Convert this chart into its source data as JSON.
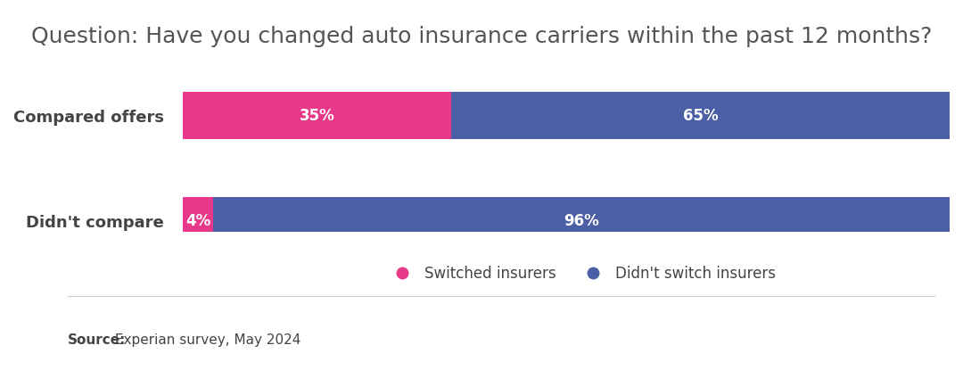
{
  "title": "Question: Have you changed auto insurance carriers within the past 12 months?",
  "categories": [
    "Compared offers",
    "Didn't compare"
  ],
  "switched": [
    35,
    4
  ],
  "not_switched": [
    65,
    96
  ],
  "switched_color": "#e8388a",
  "not_switched_color": "#4a5fa5",
  "bar_height": 0.45,
  "text_color_white": "#ffffff",
  "title_color": "#555555",
  "label_color": "#444444",
  "legend_switched": "Switched insurers",
  "legend_not_switched": "Didn't switch insurers",
  "source_bold": "Source:",
  "source_rest": " Experian survey, May 2024",
  "background_color": "#ffffff",
  "title_fontsize": 18,
  "label_fontsize": 13,
  "bar_label_fontsize": 12,
  "legend_fontsize": 12,
  "source_fontsize": 11
}
